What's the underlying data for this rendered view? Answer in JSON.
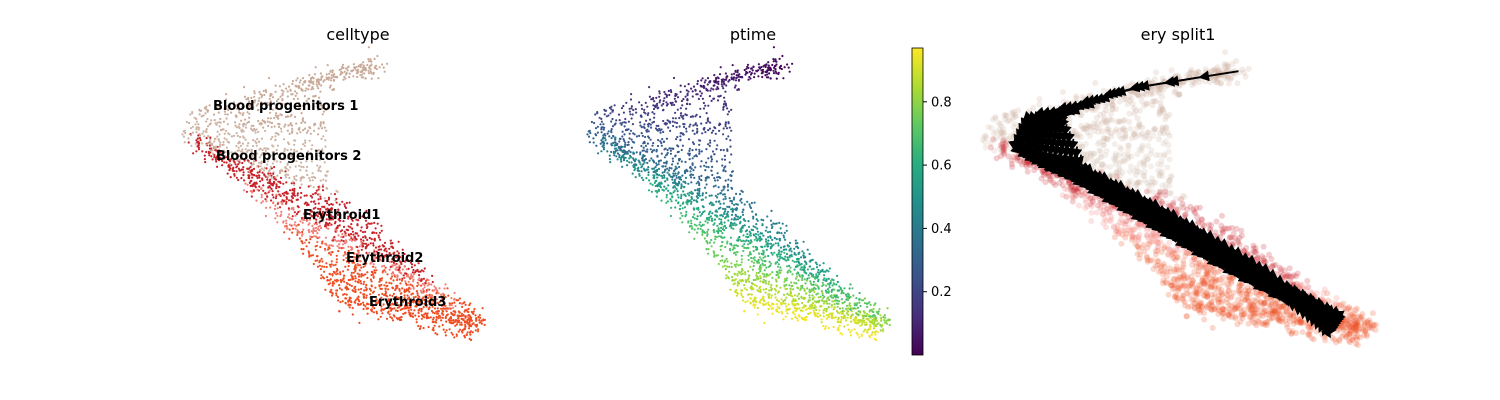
{
  "chart_data": [
    {
      "type": "scatter",
      "title": "celltype",
      "xlabel": "",
      "ylabel": "",
      "grid": false,
      "legend": "on data",
      "clusters": [
        {
          "name": "Blood progenitors 1",
          "color": "#c9aa98"
        },
        {
          "name": "Blood progenitors 2",
          "color": "#cdb4a5"
        },
        {
          "name": "Erythroid1",
          "color": "#c72228"
        },
        {
          "name": "Erythroid2",
          "color": "#f08079"
        },
        {
          "name": "Erythroid3",
          "color": "#ef4e22"
        }
      ]
    },
    {
      "type": "scatter",
      "title": "ptime",
      "xlabel": "",
      "ylabel": "",
      "grid": false,
      "colormap": "viridis",
      "colorbar": {
        "range": [
          0,
          0.97
        ],
        "ticks": [
          0.2,
          0.4,
          0.6,
          0.8
        ],
        "tick_labels": [
          "0.2",
          "0.4",
          "0.6",
          "0.8"
        ]
      }
    },
    {
      "type": "scatter",
      "title": "ery split1",
      "xlabel": "",
      "ylabel": "",
      "grid": false,
      "overlay": "velocity streamlines",
      "stream_color": "#000000"
    }
  ]
}
